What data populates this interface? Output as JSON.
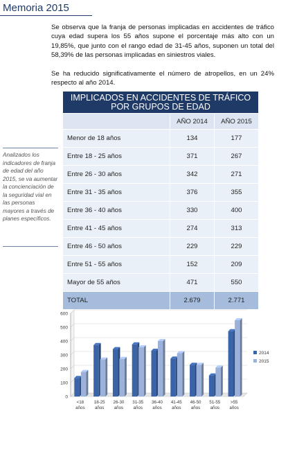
{
  "header": {
    "title": "Memoria 2015"
  },
  "text": {
    "paragraph1": "Se observa que la franja de personas implicadas en accidentes de tráfico cuya edad supera los 55 años supone el porcentaje más alto con un 19,85%, que junto con el rango edad de 31-45 años, suponen un total del 58,39% de las personas implicadas en siniestros viales.",
    "paragraph2": "Se ha reducido significativamente el número de atropellos, en un 24% respecto al año 2014."
  },
  "sidenote": "Analizados los indicadores de franja de edad del año 2015, se va aumentar la concienciación de la seguridad vial en las personas mayores a través de planes específicos.",
  "table": {
    "title_line1": "IMPLICADOS EN ACCIDENTES DE TRÁFICO",
    "title_line2": "POR GRUPOS DE EDAD",
    "col1": "AÑO 2014",
    "col2": "AÑO 2015",
    "rows": [
      {
        "label": "Menor de 18 años",
        "v2014": "134",
        "v2015": "177"
      },
      {
        "label": "Entre 18 - 25 años",
        "v2014": "371",
        "v2015": "267"
      },
      {
        "label": "Entre 26 - 30 años",
        "v2014": "342",
        "v2015": "271"
      },
      {
        "label": "Entre 31 - 35 años",
        "v2014": "376",
        "v2015": "355"
      },
      {
        "label": "Entre 36 - 40 años",
        "v2014": "330",
        "v2015": "400"
      },
      {
        "label": "Entre 41 - 45 años",
        "v2014": "274",
        "v2015": "313"
      },
      {
        "label": "Entre 46 - 50 años",
        "v2014": "229",
        "v2015": "229"
      },
      {
        "label": "Entre 51 - 55 años",
        "v2014": "152",
        "v2015": "209"
      },
      {
        "label": "Mayor de 55 años",
        "v2014": "471",
        "v2015": "550"
      }
    ],
    "total_label": "TOTAL",
    "total_2014": "2.679",
    "total_2015": "2.771"
  },
  "chart_data": {
    "type": "bar",
    "categories": [
      "<18 años",
      "18-25 años",
      "26-30 años",
      "31-35 años",
      "36-40 años",
      "41-45 años",
      "46-50 años",
      "51-55 años",
      ">55 años"
    ],
    "series": [
      {
        "name": "2014",
        "values": [
          134,
          371,
          342,
          376,
          330,
          274,
          229,
          152,
          471
        ],
        "color": "#3b64a8"
      },
      {
        "name": "2015",
        "values": [
          177,
          267,
          271,
          355,
          400,
          313,
          229,
          209,
          550
        ],
        "color": "#9cb2db"
      }
    ],
    "yticks": [
      "0",
      "100",
      "200",
      "300",
      "400",
      "500",
      "600"
    ],
    "ylim": [
      0,
      600
    ],
    "grid": true,
    "legend": "right"
  }
}
